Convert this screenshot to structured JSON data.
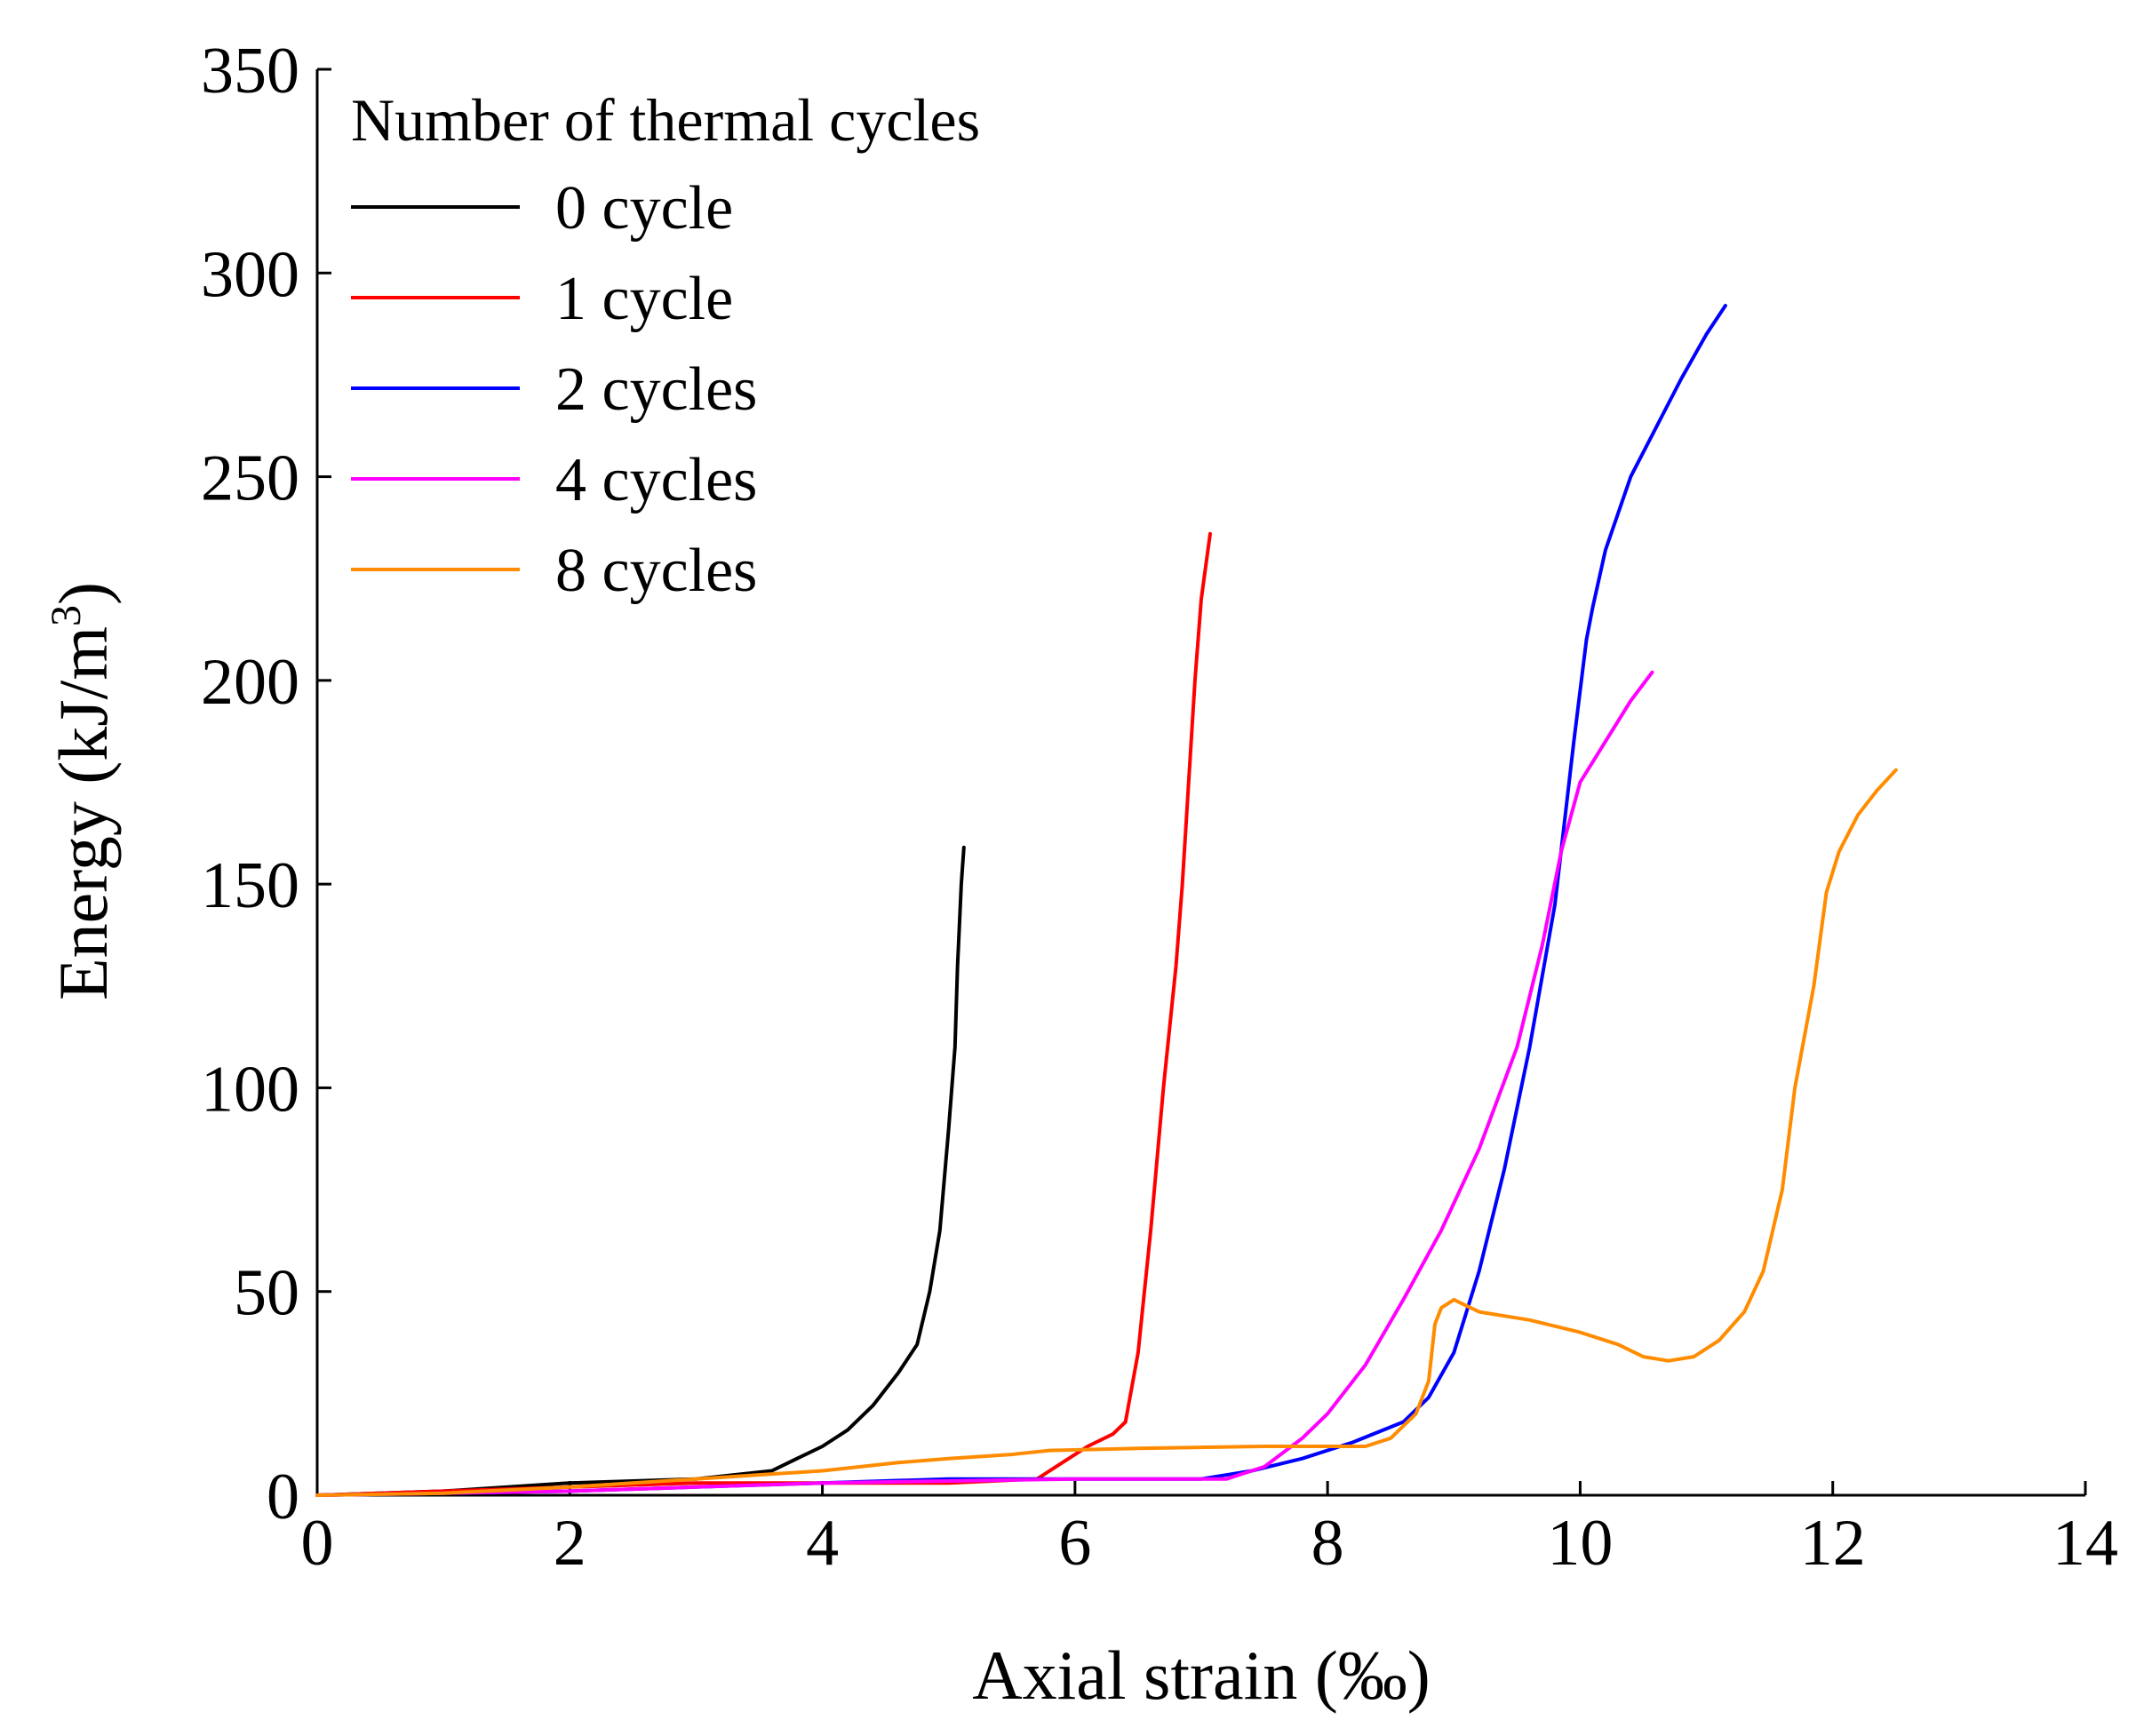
{
  "chart_data": {
    "type": "line",
    "title": "",
    "xlabel": "Axial strain (‰)",
    "ylabel": "Energy (kJ/m",
    "ylabel_sup": "3",
    "ylabel_close": ")",
    "xlim": [
      0,
      14
    ],
    "ylim": [
      0,
      350
    ],
    "xticks": [
      0,
      2,
      4,
      6,
      8,
      10,
      12,
      14
    ],
    "yticks": [
      0,
      50,
      100,
      150,
      200,
      250,
      300,
      350
    ],
    "legend_title": "Number of thermal cycles",
    "legend_position": "top-left",
    "series": [
      {
        "name": "0 cycle",
        "color": "#000000",
        "points": [
          [
            0,
            0
          ],
          [
            1,
            1
          ],
          [
            2,
            3
          ],
          [
            3,
            4
          ],
          [
            3.6,
            6
          ],
          [
            3.8,
            9
          ],
          [
            4,
            12
          ],
          [
            4.2,
            16
          ],
          [
            4.4,
            22
          ],
          [
            4.6,
            30
          ],
          [
            4.75,
            37
          ],
          [
            4.85,
            50
          ],
          [
            4.93,
            65
          ],
          [
            5.0,
            90
          ],
          [
            5.05,
            110
          ],
          [
            5.07,
            130
          ],
          [
            5.1,
            150
          ],
          [
            5.12,
            159
          ]
        ]
      },
      {
        "name": "1 cycle",
        "color": "#ff0000",
        "points": [
          [
            0,
            0
          ],
          [
            1,
            1
          ],
          [
            2,
            2
          ],
          [
            3,
            3
          ],
          [
            4,
            3
          ],
          [
            5,
            3
          ],
          [
            5.7,
            4
          ],
          [
            5.9,
            8
          ],
          [
            6.1,
            12
          ],
          [
            6.3,
            15
          ],
          [
            6.4,
            18
          ],
          [
            6.5,
            35
          ],
          [
            6.6,
            65
          ],
          [
            6.7,
            100
          ],
          [
            6.8,
            130
          ],
          [
            6.85,
            150
          ],
          [
            6.9,
            175
          ],
          [
            6.95,
            200
          ],
          [
            7.0,
            220
          ],
          [
            7.07,
            236
          ]
        ]
      },
      {
        "name": "2 cycles",
        "color": "#0000ff",
        "points": [
          [
            0,
            0
          ],
          [
            1,
            0.5
          ],
          [
            2,
            1
          ],
          [
            3,
            2
          ],
          [
            4,
            3
          ],
          [
            5,
            4
          ],
          [
            6,
            4
          ],
          [
            7,
            4
          ],
          [
            7.4,
            6
          ],
          [
            7.8,
            9
          ],
          [
            8.2,
            13
          ],
          [
            8.6,
            18
          ],
          [
            8.8,
            24
          ],
          [
            9.0,
            35
          ],
          [
            9.2,
            55
          ],
          [
            9.4,
            80
          ],
          [
            9.6,
            110
          ],
          [
            9.8,
            145
          ],
          [
            9.95,
            185
          ],
          [
            10.05,
            210
          ],
          [
            10.1,
            218
          ],
          [
            10.2,
            232
          ],
          [
            10.4,
            250
          ],
          [
            10.6,
            262
          ],
          [
            10.8,
            274
          ],
          [
            11.0,
            285
          ],
          [
            11.15,
            292
          ]
        ]
      },
      {
        "name": "4 cycles",
        "color": "#ff00ff",
        "points": [
          [
            0,
            0
          ],
          [
            1,
            0.5
          ],
          [
            2,
            1
          ],
          [
            3,
            2
          ],
          [
            4,
            3
          ],
          [
            5,
            3.5
          ],
          [
            6,
            4
          ],
          [
            7,
            4
          ],
          [
            7.2,
            4
          ],
          [
            7.5,
            7
          ],
          [
            7.8,
            14
          ],
          [
            8.0,
            20
          ],
          [
            8.3,
            32
          ],
          [
            8.6,
            48
          ],
          [
            8.9,
            65
          ],
          [
            9.2,
            85
          ],
          [
            9.5,
            110
          ],
          [
            9.7,
            135
          ],
          [
            9.85,
            158
          ],
          [
            10.0,
            175
          ],
          [
            10.2,
            185
          ],
          [
            10.4,
            195
          ],
          [
            10.57,
            202
          ]
        ]
      },
      {
        "name": "8 cycles",
        "color": "#ff8c00",
        "points": [
          [
            0,
            0
          ],
          [
            1,
            0.5
          ],
          [
            2,
            2
          ],
          [
            3,
            4
          ],
          [
            4,
            6
          ],
          [
            4.6,
            8
          ],
          [
            5,
            9
          ],
          [
            5.5,
            10
          ],
          [
            5.8,
            11
          ],
          [
            6.5,
            11.5
          ],
          [
            7.5,
            12
          ],
          [
            8.3,
            12
          ],
          [
            8.5,
            14
          ],
          [
            8.7,
            20
          ],
          [
            8.8,
            28
          ],
          [
            8.85,
            42
          ],
          [
            8.9,
            46
          ],
          [
            9.0,
            48
          ],
          [
            9.2,
            45
          ],
          [
            9.6,
            43
          ],
          [
            10.0,
            40
          ],
          [
            10.3,
            37
          ],
          [
            10.5,
            34
          ],
          [
            10.7,
            33
          ],
          [
            10.9,
            34
          ],
          [
            11.1,
            38
          ],
          [
            11.3,
            45
          ],
          [
            11.45,
            55
          ],
          [
            11.6,
            75
          ],
          [
            11.7,
            100
          ],
          [
            11.85,
            125
          ],
          [
            11.95,
            148
          ],
          [
            12.05,
            158
          ],
          [
            12.2,
            167
          ],
          [
            12.35,
            173
          ],
          [
            12.5,
            178
          ]
        ]
      }
    ]
  }
}
